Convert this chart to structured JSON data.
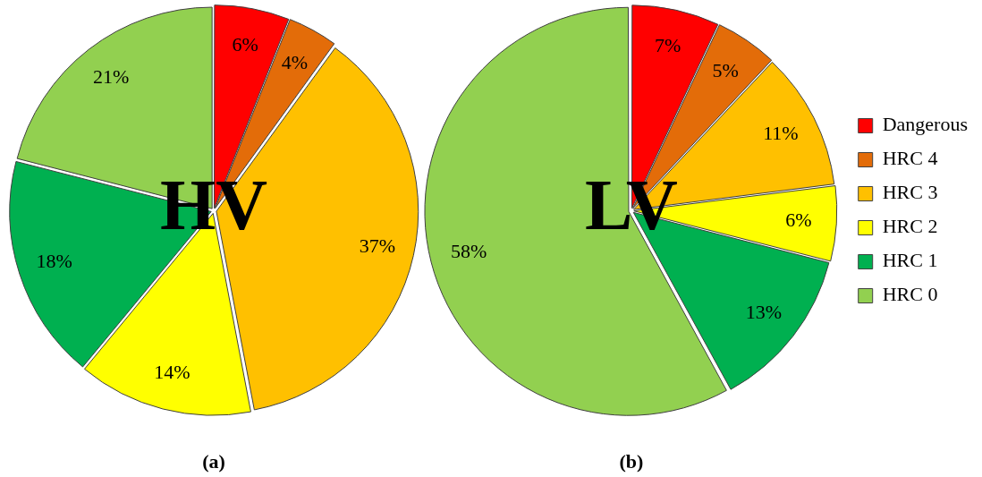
{
  "chart_data": [
    {
      "type": "pie",
      "title": "HV",
      "categories": [
        null,
        null,
        null,
        null,
        null,
        null
      ],
      "values": [
        6,
        4,
        37,
        14,
        18,
        21
      ],
      "value_labels": [
        "6%",
        "4%",
        "37%",
        "14%",
        "18%",
        "21%"
      ],
      "colors": [
        "#ff0000",
        "#e36c09",
        "#ffc000",
        "#ffff00",
        "#00b050",
        "#92d050"
      ],
      "legend": false,
      "annotations": [
        "(a)"
      ]
    },
    {
      "type": "pie",
      "title": "LV",
      "categories": [
        "Dangerous",
        "HRC 4",
        "HRC 3",
        "HRC 2",
        "HRC 1",
        "HRC 0"
      ],
      "values": [
        7,
        5,
        11,
        6,
        13,
        58
      ],
      "value_labels": [
        "7%",
        "5%",
        "11%",
        "6%",
        "13%",
        "58%"
      ],
      "colors": [
        "#ff0000",
        "#e36c09",
        "#ffc000",
        "#ffff00",
        "#00b050",
        "#92d050"
      ],
      "legend": "right",
      "annotations": [
        "(b)"
      ]
    }
  ]
}
